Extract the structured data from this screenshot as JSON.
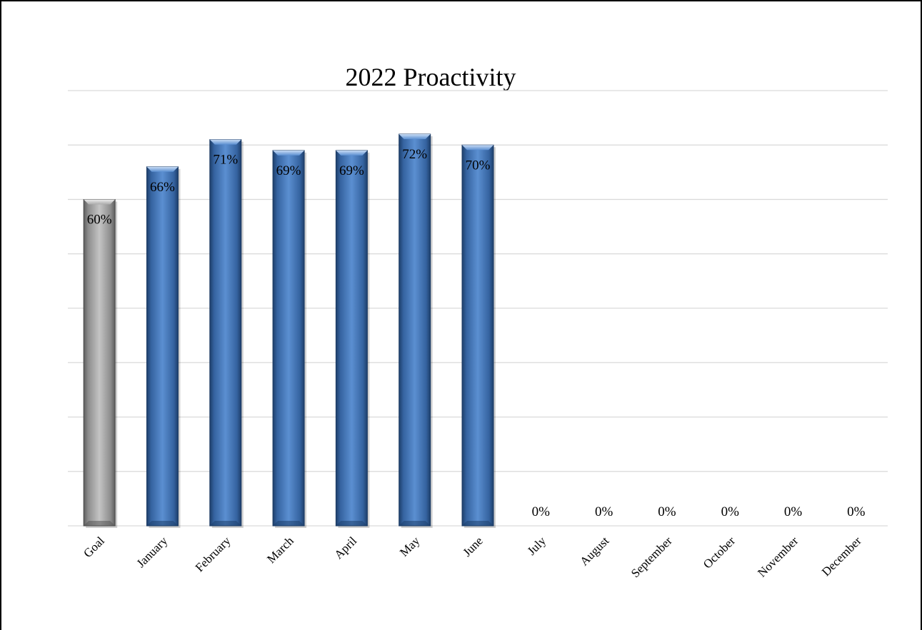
{
  "chart_data": {
    "type": "bar",
    "title": "2022 Proactivity",
    "categories": [
      "Goal",
      "January",
      "February",
      "March",
      "April",
      "May",
      "June",
      "July",
      "August",
      "September",
      "October",
      "November",
      "December"
    ],
    "values": [
      60,
      66,
      71,
      69,
      69,
      72,
      70,
      0,
      0,
      0,
      0,
      0,
      0
    ],
    "data_labels": [
      "60%",
      "66%",
      "71%",
      "69%",
      "69%",
      "72%",
      "70%",
      "0%",
      "0%",
      "0%",
      "0%",
      "0%",
      "0%"
    ],
    "ylim": [
      0,
      80
    ],
    "xlabel": "",
    "ylabel": "",
    "grid": true,
    "legend": "none",
    "colors": {
      "goal": "#a6a6a6",
      "months": "#4a7ebf",
      "grid": "#d9d9d9",
      "frame": "#000000"
    }
  }
}
